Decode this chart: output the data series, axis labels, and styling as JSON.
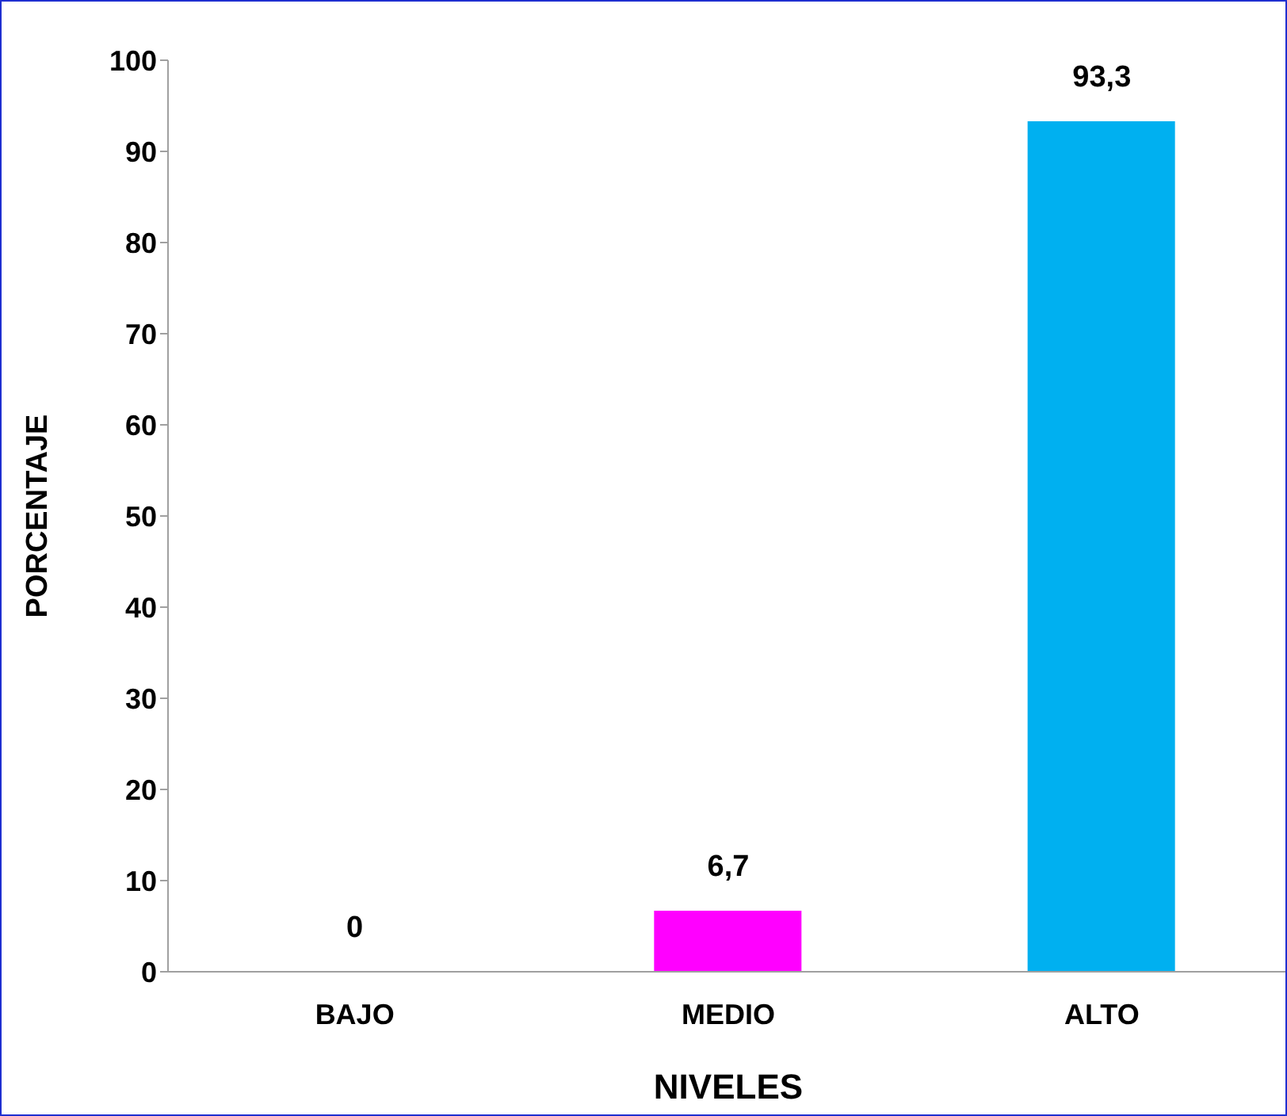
{
  "chart_data": {
    "type": "bar",
    "xlabel": "NIVELES",
    "ylabel": "PORCENTAJE",
    "categories": [
      "BAJO",
      "MEDIO",
      "ALTO"
    ],
    "values": [
      0,
      6.7,
      93.3
    ],
    "value_labels": [
      "0",
      "6,7",
      "93,3"
    ],
    "colors": [
      "#808080",
      "#ff00ff",
      "#00b0f0"
    ],
    "ylim": [
      0,
      100
    ],
    "yticks": [
      0,
      10,
      20,
      30,
      40,
      50,
      60,
      70,
      80,
      90,
      100
    ],
    "grid": false,
    "legend": false
  }
}
